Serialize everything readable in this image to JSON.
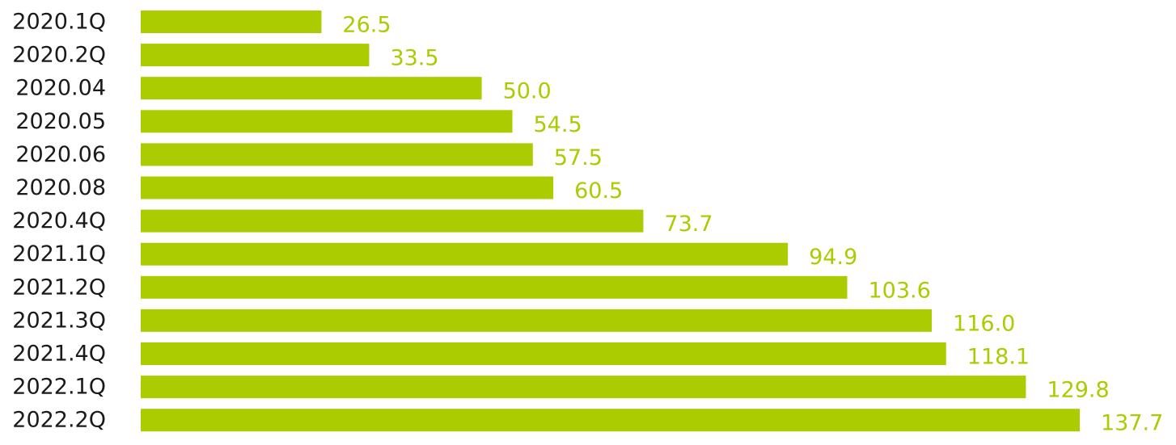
{
  "chart_data": {
    "type": "bar",
    "orientation": "horizontal",
    "categories": [
      "2020.1Q",
      "2020.2Q",
      "2020.04",
      "2020.05",
      "2020.06",
      "2020.08",
      "2020.4Q",
      "2021.1Q",
      "2021.2Q",
      "2021.3Q",
      "2021.4Q",
      "2022.1Q",
      "2022.2Q"
    ],
    "values": [
      26.5,
      33.5,
      50.0,
      54.5,
      57.5,
      60.5,
      73.7,
      94.9,
      103.6,
      116.0,
      118.1,
      129.8,
      137.7
    ],
    "value_labels": [
      "26.5",
      "33.5",
      "50.0",
      "54.5",
      "57.5",
      "60.5",
      "73.7",
      "94.9",
      "103.6",
      "116.0",
      "118.1",
      "129.8",
      "137.7"
    ],
    "title": "",
    "xlabel": "",
    "ylabel": "",
    "xlim": [
      0,
      137.7
    ],
    "grid": false,
    "legend": "none",
    "bar_color": "#aacc00",
    "value_label_color": "#aacc00",
    "category_label_color": "#1a1a1a"
  }
}
